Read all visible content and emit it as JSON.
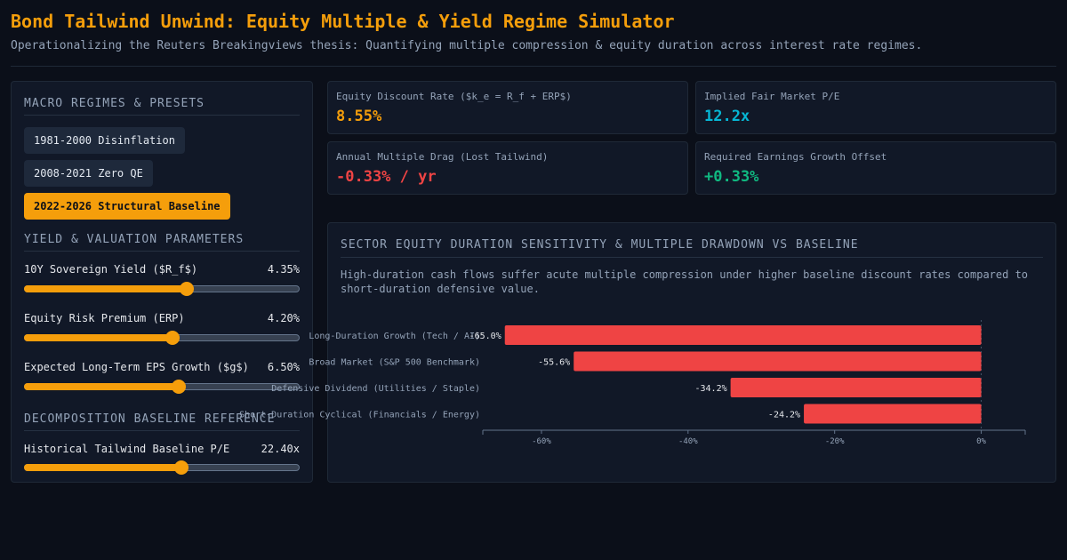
{
  "header": {
    "title": "Bond Tailwind Unwind: Equity Multiple & Yield Regime Simulator",
    "subtitle": "Operationalizing the Reuters Breakingviews thesis: Quantifying multiple compression & equity duration across interest rate regimes."
  },
  "sidebar": {
    "regimes_title": "MACRO REGIMES & PRESETS",
    "presets": [
      {
        "label": "1981-2000 Disinflation",
        "active": false
      },
      {
        "label": "2008-2021 Zero QE",
        "active": false
      },
      {
        "label": "2022-2026 Structural Baseline",
        "active": true
      }
    ],
    "params_title": "YIELD & VALUATION PARAMETERS",
    "params": [
      {
        "label": "10Y Sovereign Yield ($R_f$)",
        "value": "4.35%",
        "level": 0.59
      },
      {
        "label": "Equity Risk Premium (ERP)",
        "value": "4.20%",
        "level": 0.54
      },
      {
        "label": "Expected Long-Term EPS Growth ($g$)",
        "value": "6.50%",
        "level": 0.56
      }
    ],
    "decomp_title": "DECOMPOSITION BASELINE REFERENCE",
    "decomp_param": {
      "label": "Historical Tailwind Baseline P/E",
      "value": "22.40x",
      "level": 0.57
    }
  },
  "kpis": [
    {
      "label": "Equity Discount Rate ($k_e = R_f + ERP$)",
      "value": "8.55%",
      "color": "#f59e0b"
    },
    {
      "label": "Implied Fair Market P/E",
      "value": "12.2x",
      "color": "#06b6d4"
    },
    {
      "label": "Annual Multiple Drag (Lost Tailwind)",
      "value": "-0.33% / yr",
      "color": "#ef4444"
    },
    {
      "label": "Required Earnings Growth Offset",
      "value": "+0.33%",
      "color": "#10b981"
    }
  ],
  "chart_panel": {
    "title": "SECTOR EQUITY DURATION SENSITIVITY & MULTIPLE DRAWDOWN VS BASELINE",
    "description": "High-duration cash flows suffer acute multiple compression under higher baseline discount rates compared to short-duration defensive value."
  },
  "chart_data": {
    "type": "bar",
    "orientation": "horizontal",
    "categories": [
      "Long-Duration Growth (Tech / AI)",
      "Broad Market (S&P 500 Benchmark)",
      "Defensive Dividend (Utilities / Staple)",
      "Short-Duration Cyclical (Financials / Energy)"
    ],
    "values": [
      -65.0,
      -55.6,
      -34.2,
      -24.2
    ],
    "data_labels": [
      "-65.0%",
      "-55.6%",
      "-34.2%",
      "-24.2%"
    ],
    "xlim": [
      -68,
      6
    ],
    "xticks": [
      -60,
      -40,
      -20,
      0
    ],
    "xtick_labels": [
      "-60%",
      "-40%",
      "-20%",
      "0%"
    ],
    "bar_color": "#ef4444"
  }
}
